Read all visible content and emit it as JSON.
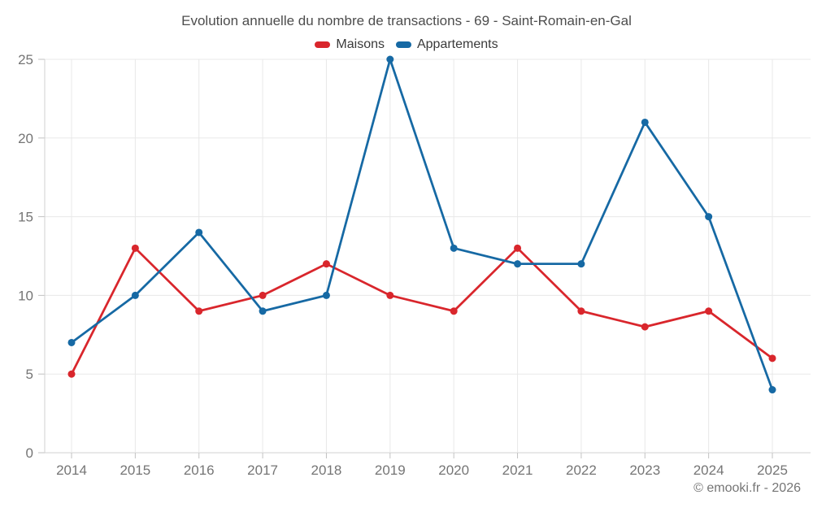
{
  "header": {
    "title": "Evolution annuelle du nombre de transactions - 69 - Saint-Romain-en-Gal"
  },
  "legend": [
    {
      "label": "Maisons",
      "color": "#d9262c"
    },
    {
      "label": "Appartements",
      "color": "#1669a4"
    }
  ],
  "footer": {
    "copyright": "© emooki.fr - 2026"
  },
  "style": {
    "background": "#ffffff",
    "grid_color": "#e8e8e8",
    "axis_line_color": "#d2d2d2",
    "tick_color": "#c2c2c2",
    "tick_label_color": "#757575",
    "title_color": "#4d4d4d",
    "legend_text_color": "#3a3a3a"
  },
  "chart_data": {
    "type": "line",
    "title": "Evolution annuelle du nombre de transactions - 69 - Saint-Romain-en-Gal",
    "x": [
      2014,
      2015,
      2016,
      2017,
      2018,
      2019,
      2020,
      2021,
      2022,
      2023,
      2024,
      2025
    ],
    "series": [
      {
        "name": "Maisons",
        "color": "#d9262c",
        "values": [
          5,
          13,
          9,
          10,
          12,
          10,
          9,
          13,
          9,
          8,
          9,
          6
        ]
      },
      {
        "name": "Appartements",
        "color": "#1669a4",
        "values": [
          7,
          10,
          14,
          9,
          10,
          25,
          13,
          12,
          12,
          21,
          15,
          4
        ]
      }
    ],
    "xlabel": "",
    "ylabel": "",
    "ylim": [
      0,
      25
    ],
    "yticks": [
      0,
      5,
      10,
      15,
      20,
      25
    ],
    "grid": true,
    "legend_position": "top",
    "marker": "circle",
    "annotations": [
      "© emooki.fr - 2026"
    ]
  }
}
